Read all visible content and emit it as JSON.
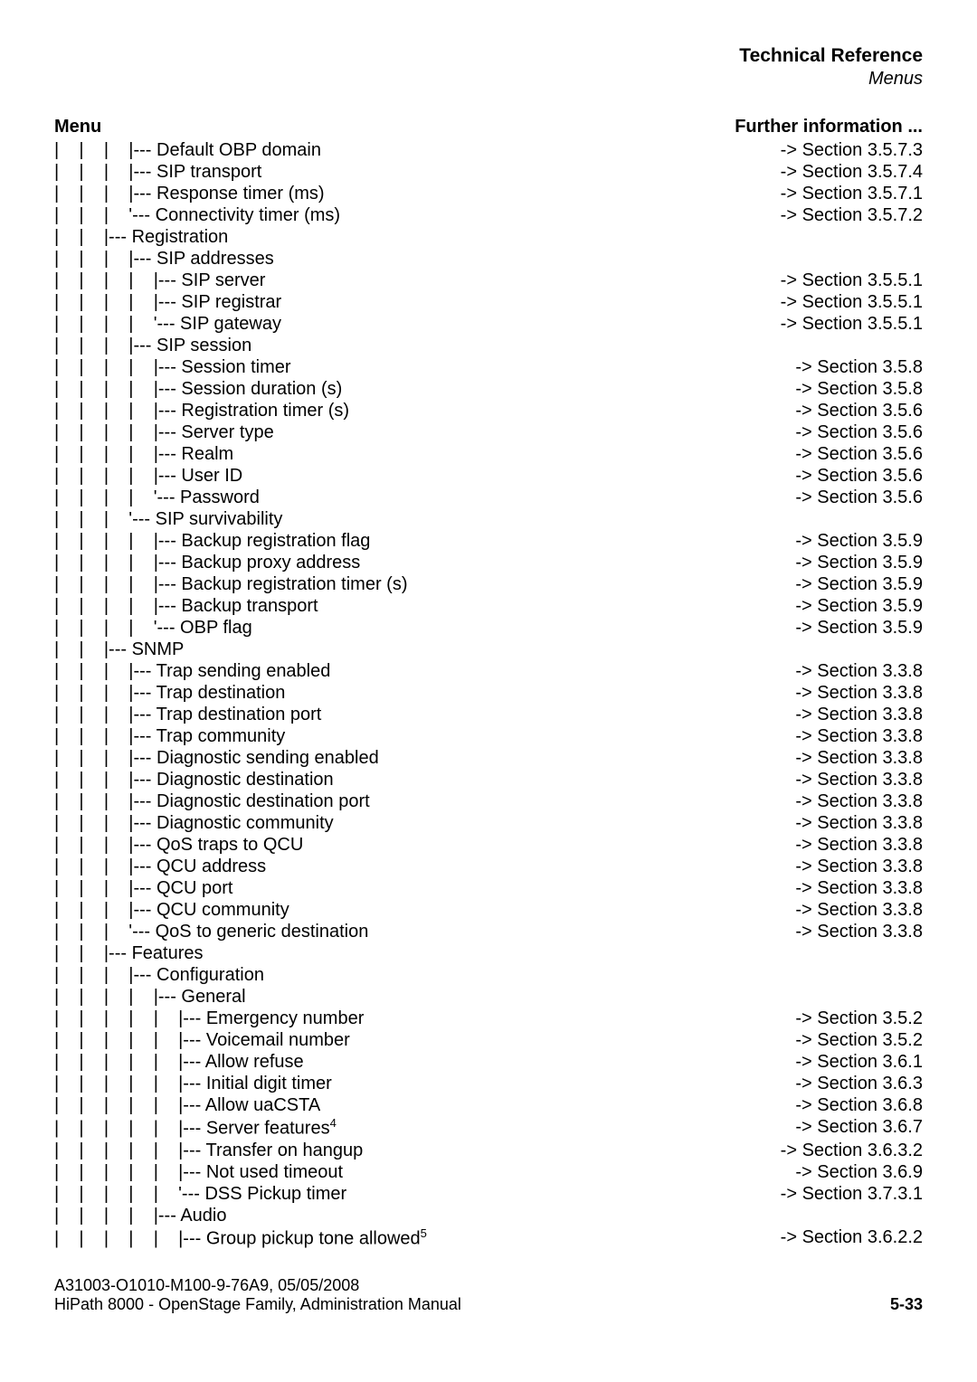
{
  "header": {
    "title": "Technical Reference",
    "subtitle": "Menus"
  },
  "columns": {
    "left": "Menu",
    "right": "Further information ..."
  },
  "tree": [
    {
      "indent": 3,
      "prefix": "|--- ",
      "label": "Default OBP domain",
      "ref": "-> Section 3.5.7.3"
    },
    {
      "indent": 3,
      "prefix": "|--- ",
      "label": "SIP transport",
      "ref": "-> Section 3.5.7.4"
    },
    {
      "indent": 3,
      "prefix": "|--- ",
      "label": "Response timer (ms)",
      "ref": "-> Section 3.5.7.1"
    },
    {
      "indent": 3,
      "prefix": "'--- ",
      "label": "Connectivity timer (ms)",
      "ref": "-> Section 3.5.7.2"
    },
    {
      "indent": 2,
      "prefix": "|--- ",
      "label": "Registration",
      "ref": ""
    },
    {
      "indent": 3,
      "prefix": "|--- ",
      "label": "SIP addresses",
      "ref": ""
    },
    {
      "indent": 4,
      "prefix": "|--- ",
      "label": "SIP server",
      "ref": "-> Section 3.5.5.1"
    },
    {
      "indent": 4,
      "prefix": "|--- ",
      "label": "SIP registrar",
      "ref": "-> Section 3.5.5.1"
    },
    {
      "indent": 4,
      "prefix": "'--- ",
      "label": "SIP gateway",
      "ref": "-> Section 3.5.5.1"
    },
    {
      "indent": 3,
      "prefix": "|--- ",
      "label": "SIP session",
      "ref": ""
    },
    {
      "indent": 4,
      "prefix": "|--- ",
      "label": "Session timer",
      "ref": "-> Section 3.5.8"
    },
    {
      "indent": 4,
      "prefix": "|--- ",
      "label": "Session duration (s)",
      "ref": "-> Section 3.5.8"
    },
    {
      "indent": 4,
      "prefix": "|--- ",
      "label": "Registration timer (s)",
      "ref": "-> Section 3.5.6"
    },
    {
      "indent": 4,
      "prefix": "|--- ",
      "label": "Server type",
      "ref": "-> Section 3.5.6"
    },
    {
      "indent": 4,
      "prefix": "|--- ",
      "label": "Realm",
      "ref": "-> Section 3.5.6"
    },
    {
      "indent": 4,
      "prefix": "|--- ",
      "label": "User ID",
      "ref": "-> Section 3.5.6"
    },
    {
      "indent": 4,
      "prefix": "'--- ",
      "label": "Password",
      "ref": "-> Section 3.5.6"
    },
    {
      "indent": 3,
      "prefix": "'--- ",
      "label": "SIP survivability",
      "ref": ""
    },
    {
      "indent": 4,
      "prefix": "|--- ",
      "label": "Backup registration flag",
      "ref": "-> Section 3.5.9"
    },
    {
      "indent": 4,
      "prefix": "|--- ",
      "label": "Backup proxy address",
      "ref": "-> Section 3.5.9"
    },
    {
      "indent": 4,
      "prefix": "|--- ",
      "label": "Backup registration timer (s)",
      "ref": "-> Section 3.5.9"
    },
    {
      "indent": 4,
      "prefix": "|--- ",
      "label": "Backup transport",
      "ref": "-> Section 3.5.9"
    },
    {
      "indent": 4,
      "prefix": "'--- ",
      "label": "OBP flag",
      "ref": "-> Section 3.5.9"
    },
    {
      "indent": 2,
      "prefix": "|--- ",
      "label": "SNMP",
      "ref": ""
    },
    {
      "indent": 3,
      "prefix": "|--- ",
      "label": "Trap sending enabled",
      "ref": "-> Section 3.3.8"
    },
    {
      "indent": 3,
      "prefix": "|--- ",
      "label": "Trap destination",
      "ref": "-> Section 3.3.8"
    },
    {
      "indent": 3,
      "prefix": "|--- ",
      "label": "Trap destination port",
      "ref": "-> Section 3.3.8"
    },
    {
      "indent": 3,
      "prefix": "|--- ",
      "label": "Trap community",
      "ref": "-> Section 3.3.8"
    },
    {
      "indent": 3,
      "prefix": "|--- ",
      "label": "Diagnostic sending enabled",
      "ref": "-> Section 3.3.8"
    },
    {
      "indent": 3,
      "prefix": "|--- ",
      "label": "Diagnostic destination",
      "ref": "-> Section 3.3.8"
    },
    {
      "indent": 3,
      "prefix": "|--- ",
      "label": "Diagnostic destination port",
      "ref": "-> Section 3.3.8"
    },
    {
      "indent": 3,
      "prefix": "|--- ",
      "label": "Diagnostic community",
      "ref": "-> Section 3.3.8"
    },
    {
      "indent": 3,
      "prefix": "|--- ",
      "label": "QoS traps to QCU",
      "ref": "-> Section 3.3.8"
    },
    {
      "indent": 3,
      "prefix": "|--- ",
      "label": "QCU address",
      "ref": "-> Section 3.3.8"
    },
    {
      "indent": 3,
      "prefix": "|--- ",
      "label": "QCU port",
      "ref": "-> Section 3.3.8"
    },
    {
      "indent": 3,
      "prefix": "|--- ",
      "label": "QCU community",
      "ref": "-> Section 3.3.8"
    },
    {
      "indent": 3,
      "prefix": "'--- ",
      "label": "QoS to generic destination",
      "ref": "-> Section 3.3.8"
    },
    {
      "indent": 2,
      "prefix": "|--- ",
      "label": "Features",
      "ref": ""
    },
    {
      "indent": 3,
      "prefix": "|--- ",
      "label": "Configuration",
      "ref": ""
    },
    {
      "indent": 4,
      "prefix": "|--- ",
      "label": "General",
      "ref": ""
    },
    {
      "indent": 5,
      "prefix": "|--- ",
      "label": "Emergency number",
      "ref": "-> Section 3.5.2"
    },
    {
      "indent": 5,
      "prefix": "|--- ",
      "label": "Voicemail number",
      "ref": "-> Section 3.5.2"
    },
    {
      "indent": 5,
      "prefix": "|--- ",
      "label": "Allow refuse",
      "ref": "-> Section 3.6.1"
    },
    {
      "indent": 5,
      "prefix": "|--- ",
      "label": "Initial digit timer",
      "ref": "-> Section 3.6.3"
    },
    {
      "indent": 5,
      "prefix": "|--- ",
      "label": "Allow uaCSTA",
      "ref": "-> Section 3.6.8"
    },
    {
      "indent": 5,
      "prefix": "|--- ",
      "label": "Server features",
      "sup": "4",
      "ref": "-> Section 3.6.7"
    },
    {
      "indent": 5,
      "prefix": "|--- ",
      "label": "Transfer on hangup",
      "ref": "-> Section 3.6.3.2"
    },
    {
      "indent": 5,
      "prefix": "|--- ",
      "label": "Not used timeout",
      "ref": "-> Section 3.6.9"
    },
    {
      "indent": 5,
      "prefix": "'--- ",
      "label": "DSS Pickup timer",
      "ref": "-> Section 3.7.3.1"
    },
    {
      "indent": 4,
      "prefix": "|--- ",
      "label": "Audio",
      "ref": ""
    },
    {
      "indent": 5,
      "prefix": "|--- ",
      "label": "Group pickup tone allowed",
      "sup": "5",
      "ref": "-> Section 3.6.2.2"
    }
  ],
  "footer": {
    "line1": "A31003-O1010-M100-9-76A9, 05/05/2008",
    "line2": "HiPath 8000 - OpenStage Family, Administration Manual",
    "page": "5-33"
  }
}
